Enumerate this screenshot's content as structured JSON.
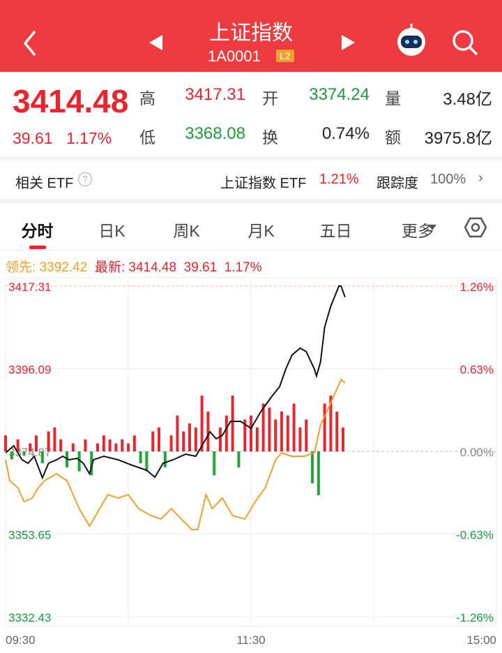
{
  "header": {
    "title": "上证指数",
    "code": "1A0001",
    "badge": "L2"
  },
  "quote": {
    "price": "3414.48",
    "change": "39.61",
    "pct": "1.17%",
    "stats": [
      {
        "label": "高",
        "value": "3417.31"
      },
      {
        "label": "开",
        "value": "3374.24"
      },
      {
        "label": "量",
        "value": "3.48亿"
      },
      {
        "label": "低",
        "value": "3368.08"
      },
      {
        "label": "换",
        "value": "0.74%"
      },
      {
        "label": "额",
        "value": "3975.8亿"
      }
    ]
  },
  "etf": {
    "label": "相关 ETF",
    "name": "上证指数 ETF",
    "pct": "1.21%",
    "track_label": "跟踪度",
    "track": "100%"
  },
  "tabs": [
    "分时",
    "日K",
    "周K",
    "月K",
    "五日",
    "更多"
  ],
  "legend": {
    "lead_label": "领先:",
    "lead": "3392.42",
    "latest_label": "最新:",
    "latest": "3414.48",
    "change": "39.61",
    "pct": "1.17%"
  },
  "chart": {
    "type": "line",
    "xlim": [
      0,
      240
    ],
    "xticks": [
      {
        "value": 0,
        "label": "09:30"
      },
      {
        "value": 120,
        "label": "11:30"
      },
      {
        "value": 240,
        "label": "15:00"
      }
    ],
    "ylim": [
      3332.43,
      3417.31
    ],
    "yticks": [
      3417.31,
      3396.09,
      3374.87,
      3353.65,
      3332.43
    ],
    "y2ticks": [
      {
        "value": 3417.31,
        "label": "1.26%"
      },
      {
        "value": 3396.09,
        "label": "0.63%"
      },
      {
        "value": 3374.87,
        "label": "0.00%"
      },
      {
        "value": 3353.65,
        "label": "-0.63%"
      },
      {
        "value": 3332.43,
        "label": "-1.26%"
      }
    ],
    "series": [
      {
        "color": "#111111",
        "x": [
          0,
          4,
          8,
          11,
          14,
          18,
          21,
          25,
          28,
          31,
          35,
          38,
          41,
          43,
          48,
          55,
          62,
          69,
          73,
          77,
          82,
          88,
          93,
          96,
          100,
          103,
          106,
          110,
          115,
          120,
          125,
          130,
          134,
          137,
          140,
          144,
          147,
          151,
          152,
          154,
          156,
          159,
          163,
          164,
          166
        ],
        "values": [
          3374.51,
          3376.3,
          3372.72,
          3371.83,
          3373.62,
          3368.08,
          3371.83,
          3372.72,
          3373.62,
          3372.72,
          3373.08,
          3371.83,
          3369.14,
          3372.72,
          3373.62,
          3372.72,
          3371.29,
          3370.03,
          3368.24,
          3371.83,
          3372.72,
          3374.15,
          3373.62,
          3376.3,
          3379.88,
          3378.09,
          3378.99,
          3382.57,
          3382.57,
          3380.78,
          3385.26,
          3388.84,
          3391.52,
          3396.0,
          3399.58,
          3401.37,
          3400.48,
          3396.0,
          3394.21,
          3397.79,
          3406.75,
          3412.12,
          3417.31,
          3417.31,
          3414.48
        ]
      },
      {
        "color": "#f0a030",
        "x": [
          0,
          2,
          6,
          9,
          13,
          16,
          19,
          25,
          30,
          33,
          36,
          41,
          45,
          50,
          55,
          60,
          65,
          71,
          76,
          81,
          86,
          91,
          94,
          98,
          101,
          106,
          111,
          117,
          122,
          127,
          132,
          135,
          140,
          146,
          151,
          154,
          158,
          161,
          164,
          166
        ],
        "values": [
          3372.72,
          3367.35,
          3365.56,
          3361.98,
          3362.87,
          3365.56,
          3367.35,
          3369.14,
          3367.35,
          3363.77,
          3360.19,
          3355.71,
          3359.29,
          3363.77,
          3362.87,
          3363.77,
          3360.19,
          3358.4,
          3357.5,
          3360.19,
          3357.5,
          3354.81,
          3354.81,
          3363.77,
          3360.19,
          3362.87,
          3358.4,
          3357.5,
          3361.98,
          3365.56,
          3372.72,
          3374.51,
          3373.62,
          3373.62,
          3374.51,
          3381.68,
          3386.16,
          3389.74,
          3393.32,
          3392.42
        ]
      }
    ],
    "volume": {
      "up_color": "#e8262d",
      "down_color": "#25a33a",
      "x": [
        0,
        3,
        6,
        9,
        12,
        15,
        18,
        21,
        24,
        27,
        30,
        33,
        36,
        39,
        42,
        45,
        48,
        51,
        54,
        57,
        60,
        63,
        66,
        69,
        72,
        75,
        78,
        81,
        84,
        87,
        90,
        93,
        96,
        99,
        102,
        105,
        108,
        111,
        114,
        117,
        120,
        123,
        126,
        129,
        132,
        135,
        138,
        141,
        144,
        147,
        150,
        153,
        156,
        159,
        162,
        165
      ],
      "values": [
        20,
        -10,
        15,
        -5,
        10,
        20,
        -15,
        25,
        30,
        15,
        -20,
        10,
        -25,
        15,
        -30,
        10,
        20,
        15,
        10,
        15,
        10,
        20,
        -15,
        -25,
        25,
        30,
        -20,
        20,
        45,
        25,
        35,
        30,
        70,
        50,
        -30,
        30,
        45,
        70,
        -20,
        40,
        45,
        30,
        60,
        55,
        40,
        50,
        45,
        60,
        30,
        40,
        -40,
        -55,
        60,
        70,
        50,
        30
      ]
    }
  }
}
